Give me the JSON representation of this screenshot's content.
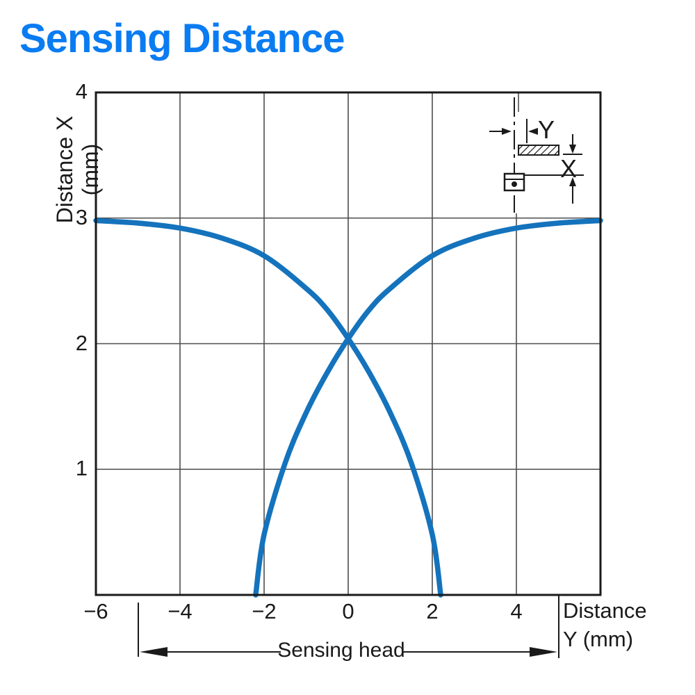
{
  "title": {
    "text": "Sensing Distance",
    "color": "#0a7cf2"
  },
  "chart_data": {
    "type": "line",
    "title": "Sensing Distance",
    "xlabel": "Distance Y (mm)",
    "xlabel_lines": [
      "Distance",
      "Y (mm)"
    ],
    "ylabel": "Distance X (mm)",
    "xlim": [
      -6,
      6
    ],
    "ylim": [
      0,
      4
    ],
    "xticks": {
      "values": [
        -6,
        -4,
        -2,
        0,
        2,
        4
      ],
      "labels": [
        "−6",
        "−4",
        "−2",
        "0",
        "2",
        "4"
      ]
    },
    "yticks": {
      "values": [
        4,
        3,
        2,
        1
      ],
      "labels": [
        "4",
        "3",
        "2",
        "1"
      ]
    },
    "grid": true,
    "legend": "none",
    "line_color": "#1473bc",
    "line_width": 7.5,
    "grid_color": "#4d4d4d",
    "border_color": "#1a1a1a",
    "series": [
      {
        "name": "sensing-boundary-descending",
        "points": [
          [
            -6,
            2.98
          ],
          [
            -5,
            2.96
          ],
          [
            -4,
            2.92
          ],
          [
            -3,
            2.84
          ],
          [
            -2,
            2.7
          ],
          [
            -1,
            2.44
          ],
          [
            -0.5,
            2.27
          ],
          [
            0,
            2.04
          ],
          [
            0.5,
            1.77
          ],
          [
            1,
            1.45
          ],
          [
            1.5,
            1.05
          ],
          [
            2,
            0.48
          ],
          [
            2.2,
            0
          ]
        ]
      },
      {
        "name": "sensing-boundary-ascending",
        "points": [
          [
            -2.2,
            0
          ],
          [
            -2,
            0.48
          ],
          [
            -1.5,
            1.05
          ],
          [
            -1,
            1.45
          ],
          [
            -0.5,
            1.77
          ],
          [
            0,
            2.04
          ],
          [
            0.5,
            2.27
          ],
          [
            1,
            2.44
          ],
          [
            2,
            2.7
          ],
          [
            3,
            2.84
          ],
          [
            4,
            2.92
          ],
          [
            5,
            2.96
          ],
          [
            6,
            2.98
          ]
        ]
      }
    ],
    "annotations": {
      "crossing_point": [
        0,
        2.04
      ],
      "sensing_head": {
        "label": "Sensing head",
        "from_x": -5,
        "to_x": 5
      },
      "inset": {
        "y_label": "Y",
        "x_label": "X"
      }
    }
  }
}
